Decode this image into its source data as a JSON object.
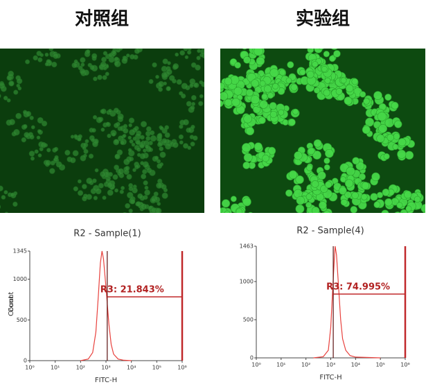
{
  "panels": [
    {
      "label": "对照组"
    },
    {
      "label": "实验组"
    }
  ],
  "chart_data": [
    {
      "type": "line",
      "title": "R2 - Sample(1)",
      "xlabel": "FITC-H",
      "ylabel": "Count",
      "color": "#e8403c",
      "xlog": true,
      "x": [
        100,
        200,
        300,
        400,
        500,
        600,
        700,
        800,
        1000,
        1300,
        1600,
        2000,
        3000,
        5000,
        10000
      ],
      "values": [
        0,
        20,
        100,
        350,
        800,
        1200,
        1345,
        1250,
        900,
        450,
        200,
        80,
        20,
        5,
        0
      ],
      "xlim": [
        1,
        1000000
      ],
      "xticks": [
        {
          "value": 1,
          "label": "10⁰"
        },
        {
          "value": 10,
          "label": "10¹"
        },
        {
          "value": 100,
          "label": "10²"
        },
        {
          "value": 1000,
          "label": "10³"
        },
        {
          "value": 10000,
          "label": "10⁴"
        },
        {
          "value": 100000,
          "label": "10⁵"
        },
        {
          "value": 1000000,
          "label": "10⁶"
        }
      ],
      "ylim": [
        0,
        1345
      ],
      "yticks": [
        0,
        500,
        1000,
        1345
      ],
      "gate": {
        "x": 1120,
        "level": 783,
        "label": "R3: 21.843%"
      }
    },
    {
      "type": "line",
      "title": "R2 - Sample(4)",
      "xlabel": "FITC-H",
      "ylabel": "Count",
      "color": "#e8403c",
      "xlog": true,
      "x": [
        200,
        500,
        800,
        1000,
        1200,
        1400,
        1500,
        1700,
        2000,
        2500,
        3000,
        4000,
        6000,
        10000,
        100000
      ],
      "values": [
        0,
        15,
        100,
        400,
        900,
        1300,
        1463,
        1350,
        1000,
        500,
        250,
        100,
        30,
        10,
        0
      ],
      "xlim": [
        1,
        1000000
      ],
      "xticks": [
        {
          "value": 1,
          "label": "10⁰"
        },
        {
          "value": 10,
          "label": "10¹"
        },
        {
          "value": 100,
          "label": "10²"
        },
        {
          "value": 1000,
          "label": "10³"
        },
        {
          "value": 10000,
          "label": "10⁴"
        },
        {
          "value": 100000,
          "label": "10⁵"
        },
        {
          "value": 1000000,
          "label": "10⁶"
        }
      ],
      "ylim": [
        0,
        1463
      ],
      "yticks": [
        0,
        500,
        1000,
        1463
      ],
      "gate": {
        "x": 1260,
        "level": 836,
        "label": "R3: 74.995%"
      }
    }
  ]
}
